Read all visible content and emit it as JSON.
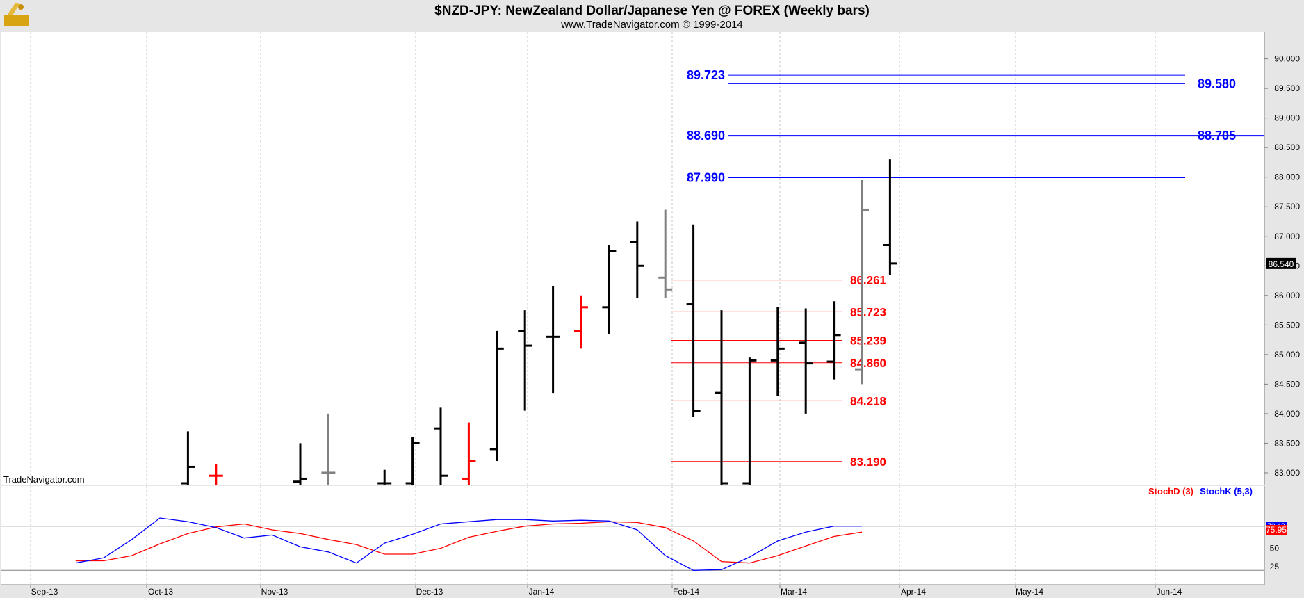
{
  "header": {
    "title": "$NZD-JPY:  NewZealand Dollar/Japanese Yen @ FOREX  (Weekly bars)",
    "subtitle": "www.TradeNavigator.com © 1999-2014",
    "watermark": "TradeNavigator.com"
  },
  "chart_data": [
    {
      "type": "ohlc",
      "title": "$NZD-JPY:  NewZealand Dollar/Japanese Yen @ FOREX  (Weekly bars)",
      "ylim": [
        82.8,
        90.5
      ],
      "y_ticks": [
        "83.000",
        "83.500",
        "84.000",
        "84.500",
        "85.000",
        "85.500",
        "86.000",
        "86.500",
        "87.000",
        "87.500",
        "88.000",
        "88.500",
        "89.000",
        "89.500",
        "90.000"
      ],
      "x_labels": [
        "Sep-13",
        "Oct-13",
        "Nov-13",
        "Dec-13",
        "Jan-14",
        "Feb-14",
        "Mar-14",
        "Apr-14",
        "May-14",
        "Jun-14"
      ],
      "last_price": "86.540",
      "colors": {
        "up": "#000000",
        "down_red": "#ff0000",
        "inside_gray": "#808080",
        "resistance": "#0000ff",
        "support": "#ff0000"
      },
      "bars": [
        {
          "week": 3,
          "high": 83.7,
          "low": 82.8,
          "open": 82.8,
          "close": 83.1,
          "color": "#000000"
        },
        {
          "week": 4,
          "high": 83.15,
          "low": 82.8,
          "open": 82.95,
          "close": 82.95,
          "color": "#ff0000"
        },
        {
          "week": 7,
          "high": 83.5,
          "low": 82.8,
          "open": 82.85,
          "close": 82.9,
          "color": "#000000"
        },
        {
          "week": 8,
          "high": 84.0,
          "low": 82.8,
          "open": 83.0,
          "close": 83.0,
          "color": "#808080"
        },
        {
          "week": 10,
          "high": 83.05,
          "low": 82.8,
          "open": 82.8,
          "close": 82.8,
          "color": "#000000"
        },
        {
          "week": 11,
          "high": 83.6,
          "low": 82.8,
          "open": 82.8,
          "close": 83.5,
          "color": "#000000"
        },
        {
          "week": 12,
          "high": 84.1,
          "low": 82.8,
          "open": 83.75,
          "close": 82.95,
          "color": "#000000"
        },
        {
          "week": 13,
          "high": 83.85,
          "low": 82.8,
          "open": 82.9,
          "close": 83.2,
          "color": "#ff0000"
        },
        {
          "week": 14,
          "high": 85.4,
          "low": 83.2,
          "open": 83.4,
          "close": 85.1,
          "color": "#000000"
        },
        {
          "week": 15,
          "high": 85.75,
          "low": 84.05,
          "open": 85.4,
          "close": 85.15,
          "color": "#000000"
        },
        {
          "week": 16,
          "high": 86.15,
          "low": 84.35,
          "open": 85.3,
          "close": 85.3,
          "color": "#000000"
        },
        {
          "week": 17,
          "high": 86.0,
          "low": 85.1,
          "open": 85.4,
          "close": 85.8,
          "color": "#ff0000"
        },
        {
          "week": 18,
          "high": 86.85,
          "low": 85.35,
          "open": 85.8,
          "close": 86.75,
          "color": "#000000"
        },
        {
          "week": 19,
          "high": 87.25,
          "low": 85.95,
          "open": 86.9,
          "close": 86.5,
          "color": "#000000"
        },
        {
          "week": 20,
          "high": 87.45,
          "low": 85.95,
          "open": 86.3,
          "close": 86.1,
          "color": "#808080"
        },
        {
          "week": 21,
          "high": 87.2,
          "low": 83.95,
          "open": 85.85,
          "close": 84.05,
          "color": "#000000"
        },
        {
          "week": 22,
          "high": 85.75,
          "low": 82.8,
          "open": 84.35,
          "close": 82.8,
          "color": "#000000"
        },
        {
          "week": 23,
          "high": 84.95,
          "low": 82.8,
          "open": 82.8,
          "close": 84.9,
          "color": "#000000"
        },
        {
          "week": 24,
          "high": 85.8,
          "low": 84.3,
          "open": 84.9,
          "close": 85.1,
          "color": "#000000"
        },
        {
          "week": 25,
          "high": 85.78,
          "low": 84.0,
          "open": 85.2,
          "close": 84.85,
          "color": "#000000"
        },
        {
          "week": 26,
          "high": 85.9,
          "low": 84.58,
          "open": 84.88,
          "close": 85.33,
          "color": "#000000"
        },
        {
          "week": 27,
          "high": 87.95,
          "low": 84.5,
          "open": 84.75,
          "close": 87.45,
          "color": "#808080"
        },
        {
          "week": 28,
          "high": 88.3,
          "low": 86.35,
          "open": 86.85,
          "close": 86.54,
          "color": "#000000"
        }
      ],
      "levels_resistance": [
        {
          "label_left": "89.723",
          "label_right": "",
          "value": 89.723
        },
        {
          "label_left": "",
          "label_right": "89.580",
          "value": 89.58
        },
        {
          "label_left": "88.690",
          "label_right": "88.705",
          "value": 88.7
        },
        {
          "label_left": "87.990",
          "label_right": "",
          "value": 87.99
        }
      ],
      "levels_support": [
        {
          "label": "86.261",
          "value": 86.261
        },
        {
          "label": "85.723",
          "value": 85.723
        },
        {
          "label": "85.239",
          "value": 85.239
        },
        {
          "label": "84.860",
          "value": 84.86
        },
        {
          "label": "84.218",
          "value": 84.218
        },
        {
          "label": "83.190",
          "value": 83.19
        }
      ]
    },
    {
      "type": "line",
      "ylim": [
        15,
        105
      ],
      "y_ticks": [
        "25",
        "50"
      ],
      "series": [
        {
          "name": "StochD (3)",
          "color": "#ff0000",
          "values": [
            [
              -1,
              33
            ],
            [
              0,
              33
            ],
            [
              1,
              40
            ],
            [
              2,
              56
            ],
            [
              3,
              70
            ],
            [
              4,
              79
            ],
            [
              5,
              83
            ],
            [
              6,
              75
            ],
            [
              7,
              70
            ],
            [
              8,
              62
            ],
            [
              9,
              55
            ],
            [
              10,
              42
            ],
            [
              11,
              42
            ],
            [
              12,
              50
            ],
            [
              13,
              65
            ],
            [
              14,
              73
            ],
            [
              15,
              80
            ],
            [
              16,
              83
            ],
            [
              17,
              84
            ],
            [
              18,
              86
            ],
            [
              19,
              85
            ],
            [
              20,
              78
            ],
            [
              21,
              60
            ],
            [
              22,
              32
            ],
            [
              23,
              30
            ],
            [
              24,
              40
            ],
            [
              25,
              53
            ],
            [
              26,
              66
            ],
            [
              27,
              72
            ]
          ]
        },
        {
          "name": "StochK (5,3)",
          "color": "#0000ff",
          "values": [
            [
              -1,
              30
            ],
            [
              0,
              37
            ],
            [
              1,
              62
            ],
            [
              2,
              91
            ],
            [
              3,
              86
            ],
            [
              4,
              78
            ],
            [
              5,
              64
            ],
            [
              6,
              68
            ],
            [
              7,
              52
            ],
            [
              8,
              45
            ],
            [
              9,
              30
            ],
            [
              10,
              57
            ],
            [
              11,
              69
            ],
            [
              12,
              83
            ],
            [
              13,
              86
            ],
            [
              14,
              89
            ],
            [
              15,
              89
            ],
            [
              16,
              87
            ],
            [
              17,
              88
            ],
            [
              18,
              87
            ],
            [
              19,
              75
            ],
            [
              20,
              40
            ],
            [
              21,
              20
            ],
            [
              22,
              21
            ],
            [
              23,
              38
            ],
            [
              24,
              60
            ],
            [
              25,
              72
            ],
            [
              26,
              80
            ],
            [
              27,
              80
            ]
          ]
        }
      ],
      "legend": [
        "StochD (3)",
        "StochK (5,3)"
      ],
      "last_values": [
        "75.95",
        "79.43"
      ]
    }
  ]
}
